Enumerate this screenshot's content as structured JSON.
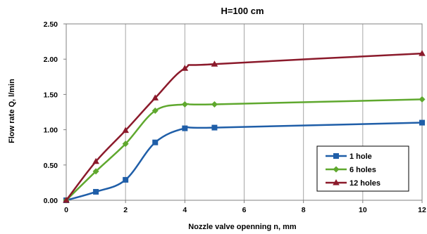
{
  "chart_data": {
    "type": "line",
    "title": "H=100 cm",
    "xlabel": "Nozzle valve openning n, mm",
    "ylabel": "Flow rate Q, l/min",
    "xlim": [
      0,
      12
    ],
    "ylim": [
      0,
      2.5
    ],
    "x_ticks": [
      0,
      2,
      4,
      6,
      8,
      10,
      12
    ],
    "x_tick_labels": [
      "0",
      "2",
      "4",
      "6",
      "8",
      "10",
      "12"
    ],
    "y_ticks": [
      0,
      0.5,
      1.0,
      1.5,
      2.0,
      2.5
    ],
    "y_tick_labels": [
      "0.00",
      "0.50",
      "1.00",
      "1.50",
      "2.00",
      "2.50"
    ],
    "grid": {
      "vertical": true,
      "horizontal": false
    },
    "smooth": true,
    "legend_position": "bottom-right",
    "series": [
      {
        "name": "1 hole",
        "color": "#1f5ea8",
        "marker": "square",
        "x": [
          0,
          1,
          2,
          3,
          4,
          5,
          12
        ],
        "y": [
          0.0,
          0.12,
          0.29,
          0.82,
          1.02,
          1.03,
          1.1
        ]
      },
      {
        "name": "6 holes",
        "color": "#5fa82e",
        "marker": "diamond",
        "x": [
          0,
          1,
          2,
          3,
          4,
          5,
          12
        ],
        "y": [
          0.0,
          0.41,
          0.8,
          1.27,
          1.36,
          1.36,
          1.43
        ]
      },
      {
        "name": "12 holes",
        "color": "#8b1a2b",
        "marker": "triangle",
        "x": [
          0,
          1,
          2,
          3,
          4,
          5,
          12
        ],
        "y": [
          0.0,
          0.55,
          0.99,
          1.45,
          1.87,
          1.93,
          2.08
        ]
      }
    ]
  }
}
